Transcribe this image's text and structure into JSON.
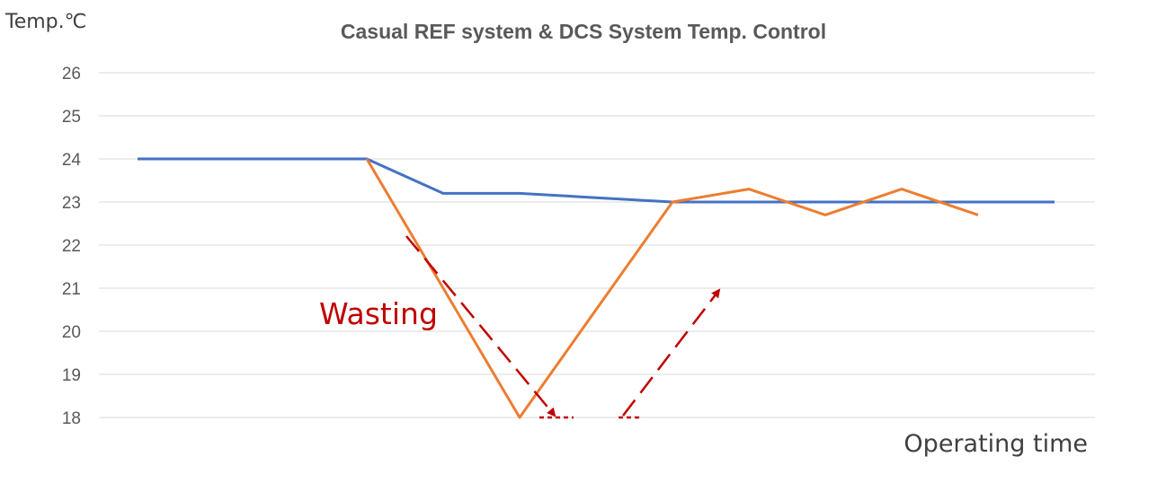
{
  "chart_data": {
    "type": "line",
    "title": "Casual REF system & DCS System Temp. Control",
    "ylabel": "Temp.℃",
    "xlabel": "Operating time",
    "ylim": [
      18,
      26
    ],
    "yticks": [
      18,
      19,
      20,
      21,
      22,
      23,
      24,
      25,
      26
    ],
    "grid": true,
    "legend": "none",
    "annotation": "Wasting",
    "x": [
      0,
      1,
      2,
      3,
      4,
      5,
      6,
      7,
      8,
      9,
      10,
      11,
      12
    ],
    "series": [
      {
        "color": "#4472c4",
        "values": [
          24,
          24,
          24,
          24,
          23.2,
          23.2,
          23.1,
          23,
          23,
          23,
          23,
          23,
          23
        ]
      },
      {
        "color": "#ed7d31",
        "values": [
          null,
          null,
          null,
          24,
          21,
          18,
          20.5,
          23,
          23.3,
          22.7,
          23.3,
          22.7,
          null
        ]
      }
    ]
  }
}
